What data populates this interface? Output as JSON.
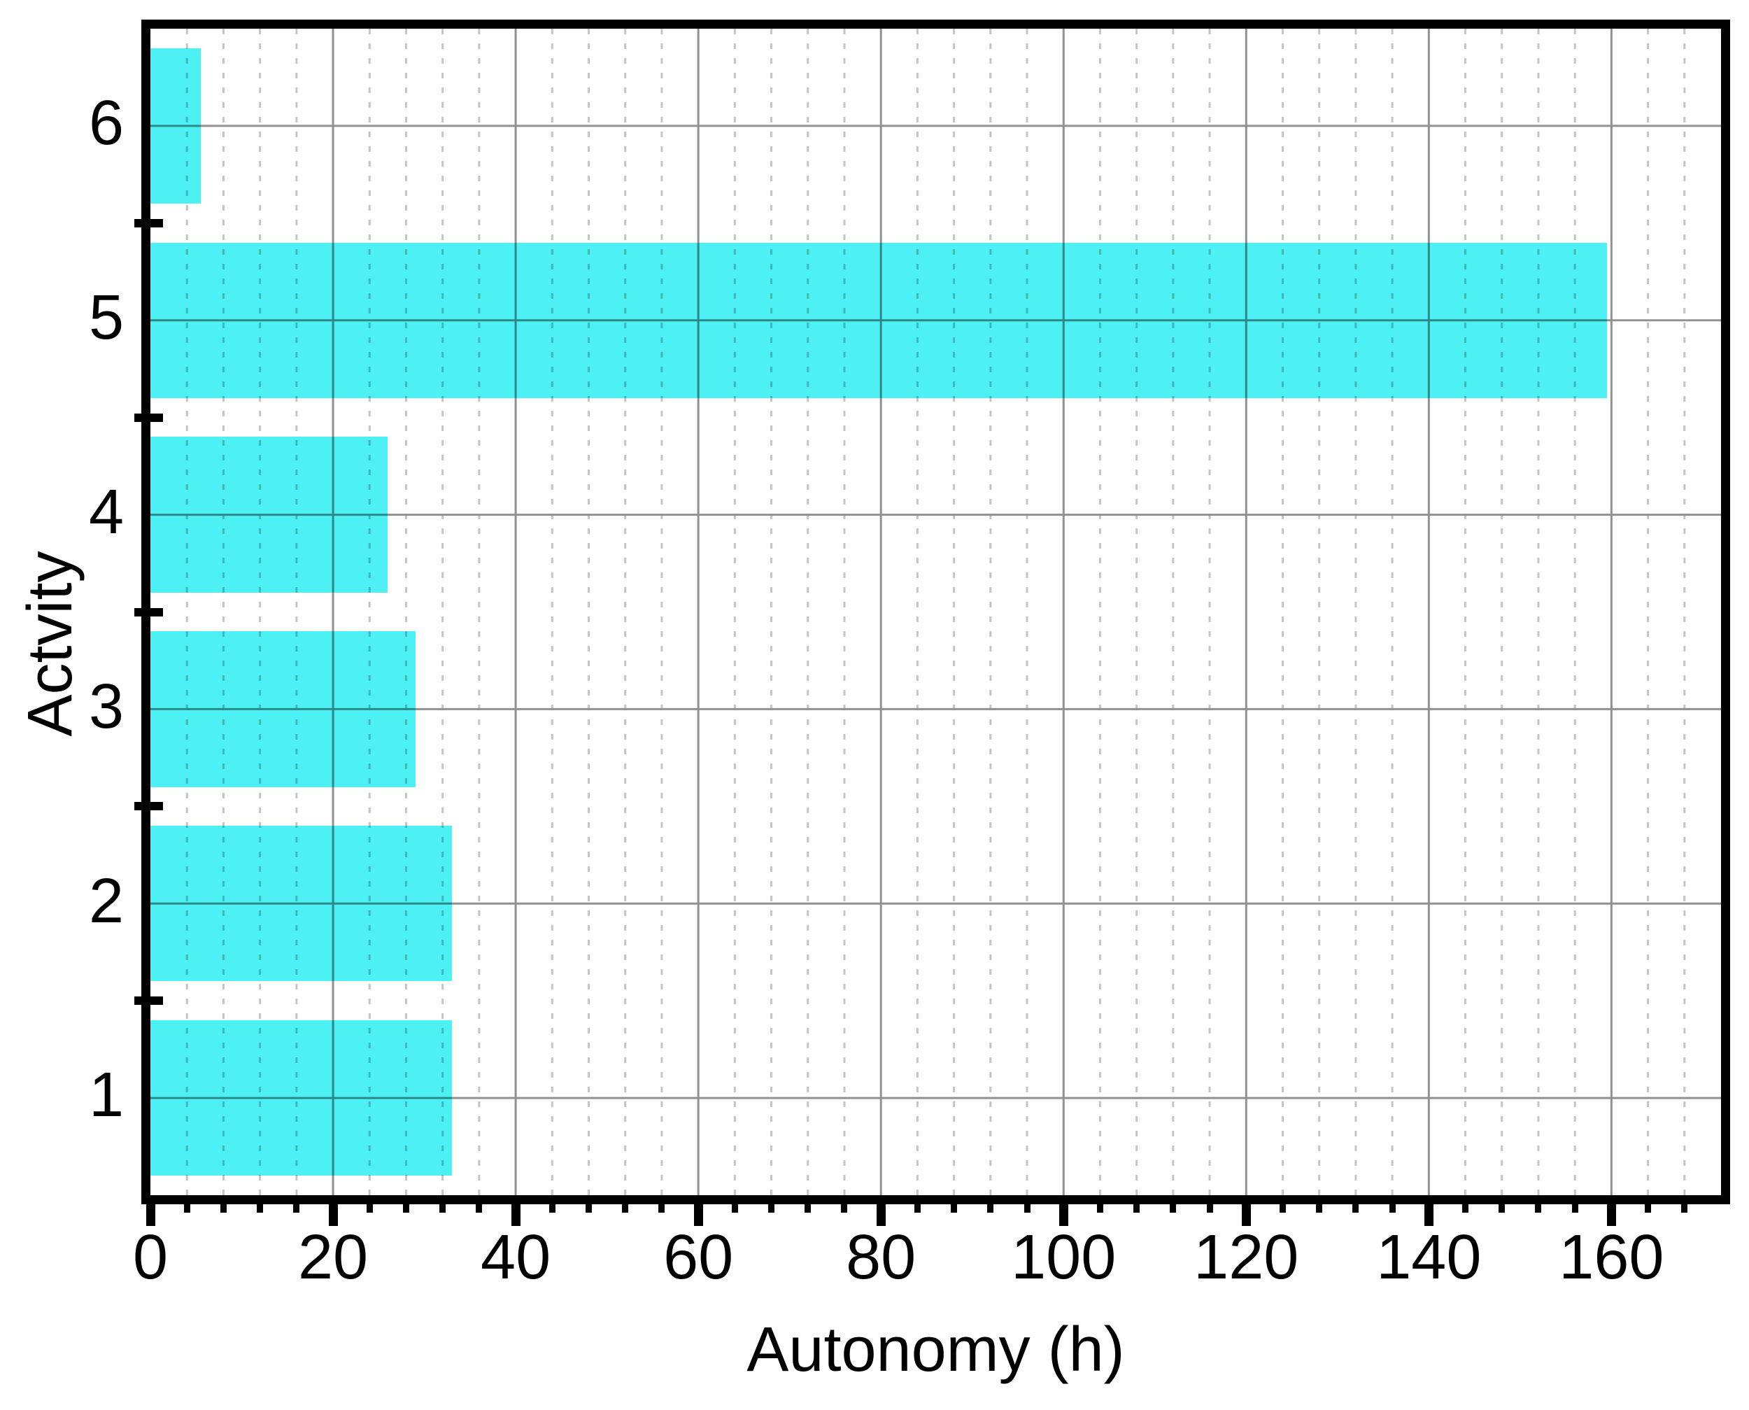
{
  "chart_data": {
    "type": "bar",
    "orientation": "horizontal",
    "title": "",
    "xlabel": "Autonomy (h)",
    "ylabel": "Actvity",
    "categories": [
      "1",
      "2",
      "3",
      "4",
      "5",
      "6"
    ],
    "values": [
      33,
      33,
      29,
      26,
      159.5,
      5.5
    ],
    "xlim": [
      0,
      172
    ],
    "ylim": [
      0.5,
      6.5
    ],
    "x_major_ticks": [
      0,
      20,
      40,
      60,
      80,
      100,
      120,
      140,
      160
    ],
    "x_minor_tick_step": 4,
    "y_tick_positions": [
      1,
      2,
      3,
      4,
      5,
      6
    ],
    "y_boundary_ticks": [
      1.5,
      2.5,
      3.5,
      4.5,
      5.5
    ],
    "bar_width_fraction": 0.8,
    "grid": {
      "vertical_major": "solid",
      "vertical_minor": "dashed",
      "horizontal_major": "solid",
      "horizontal_minor": "none"
    },
    "legend": "none",
    "colors": {
      "bar_fill": "#4DF1F3",
      "major_grid": "#919191",
      "minor_grid": "#c4c4c4",
      "axis": "#000000",
      "background": "#ffffff",
      "text": "#000000"
    }
  }
}
